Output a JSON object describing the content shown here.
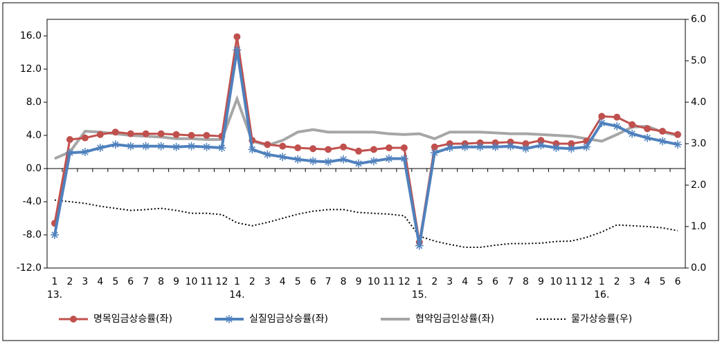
{
  "chart_data": {
    "type": "line",
    "categories": [
      "1",
      "2",
      "3",
      "4",
      "5",
      "6",
      "7",
      "8",
      "9",
      "10",
      "11",
      "12",
      "1",
      "2",
      "3",
      "4",
      "5",
      "6",
      "7",
      "8",
      "9",
      "10",
      "11",
      "12",
      "1",
      "2",
      "3",
      "4",
      "5",
      "6",
      "7",
      "8",
      "9",
      "10",
      "11",
      "12",
      "1",
      "2",
      "3",
      "4",
      "5",
      "6"
    ],
    "year_labels": [
      "13.",
      null,
      null,
      null,
      null,
      null,
      null,
      null,
      null,
      null,
      null,
      null,
      "14.",
      null,
      null,
      null,
      null,
      null,
      null,
      null,
      null,
      null,
      null,
      null,
      "15.",
      null,
      null,
      null,
      null,
      null,
      null,
      null,
      null,
      null,
      null,
      null,
      "16.",
      null,
      null,
      null,
      null,
      null
    ],
    "ylim": [
      -12,
      18
    ],
    "yticks": [
      {
        "value": -12,
        "label": "-12.0"
      },
      {
        "value": -8,
        "label": "-8.0"
      },
      {
        "value": -4,
        "label": "-4.0"
      },
      {
        "value": 0,
        "label": "0.0"
      },
      {
        "value": 4,
        "label": "4.0"
      },
      {
        "value": 8,
        "label": "8.0"
      },
      {
        "value": 12,
        "label": "12.0"
      },
      {
        "value": 16,
        "label": "16.0"
      }
    ],
    "y2lim": [
      0,
      6
    ],
    "y2ticks": [
      {
        "value": 0,
        "label": "0.0"
      },
      {
        "value": 1,
        "label": "1.0"
      },
      {
        "value": 2,
        "label": "2.0"
      },
      {
        "value": 3,
        "label": "3.0"
      },
      {
        "value": 4,
        "label": "4.0"
      },
      {
        "value": 5,
        "label": "5.0"
      },
      {
        "value": 6,
        "label": "6.0"
      }
    ],
    "grid": false,
    "legend": "bottom",
    "series": [
      {
        "name": "명목임금상승률(좌)",
        "color": "#c0504d",
        "marker": "circle",
        "dash": "solid",
        "width": 3,
        "values": [
          -6.6,
          3.5,
          3.7,
          4.1,
          4.4,
          4.2,
          4.2,
          4.2,
          4.1,
          4.0,
          4.0,
          3.9,
          15.9,
          3.4,
          2.9,
          2.7,
          2.5,
          2.4,
          2.3,
          2.6,
          2.1,
          2.3,
          2.5,
          2.5,
          -8.9,
          2.6,
          3.0,
          3.0,
          3.1,
          3.1,
          3.2,
          3.0,
          3.4,
          3.0,
          3.0,
          3.3,
          6.3,
          6.2,
          5.3,
          4.8,
          4.5,
          4.1
        ]
      },
      {
        "name": "실질임금상승률(좌)",
        "color": "#4f81bd",
        "marker": "star",
        "dash": "solid",
        "width": 4,
        "values": [
          -8.0,
          1.9,
          2.0,
          2.5,
          2.9,
          2.7,
          2.7,
          2.7,
          2.6,
          2.7,
          2.6,
          2.5,
          14.3,
          2.3,
          1.7,
          1.4,
          1.1,
          0.9,
          0.8,
          1.1,
          0.6,
          0.9,
          1.2,
          1.2,
          -9.3,
          1.9,
          2.5,
          2.6,
          2.6,
          2.6,
          2.7,
          2.4,
          2.8,
          2.5,
          2.4,
          2.6,
          5.5,
          5.1,
          4.2,
          3.7,
          3.3,
          2.9
        ]
      },
      {
        "name": "협약임금인상률(좌)",
        "color": "#a6a6a6",
        "marker": "none",
        "dash": "solid",
        "width": 4,
        "values": [
          1.2,
          2.0,
          4.5,
          4.4,
          4.2,
          4.0,
          3.9,
          3.8,
          3.6,
          3.6,
          3.5,
          3.5,
          8.4,
          3.3,
          2.8,
          3.4,
          4.4,
          4.7,
          4.4,
          4.4,
          4.4,
          4.4,
          4.2,
          4.1,
          4.2,
          3.6,
          4.4,
          4.4,
          4.4,
          4.3,
          4.2,
          4.2,
          4.1,
          4.0,
          3.9,
          3.6,
          3.3,
          4.1,
          5.0,
          5.1,
          4.4,
          4.0
        ]
      },
      {
        "name": "물가상승률(우)",
        "color": "#000000",
        "marker": "none",
        "dash": "dotted",
        "width": 2,
        "axis": "y2",
        "values": [
          1.64,
          1.6,
          1.56,
          1.49,
          1.44,
          1.39,
          1.41,
          1.44,
          1.39,
          1.32,
          1.32,
          1.29,
          1.09,
          1.02,
          1.1,
          1.2,
          1.3,
          1.37,
          1.41,
          1.41,
          1.34,
          1.32,
          1.3,
          1.26,
          0.77,
          0.65,
          0.57,
          0.5,
          0.5,
          0.55,
          0.59,
          0.59,
          0.6,
          0.64,
          0.65,
          0.74,
          0.87,
          1.04,
          1.02,
          1.0,
          0.97,
          0.9
        ]
      }
    ]
  }
}
